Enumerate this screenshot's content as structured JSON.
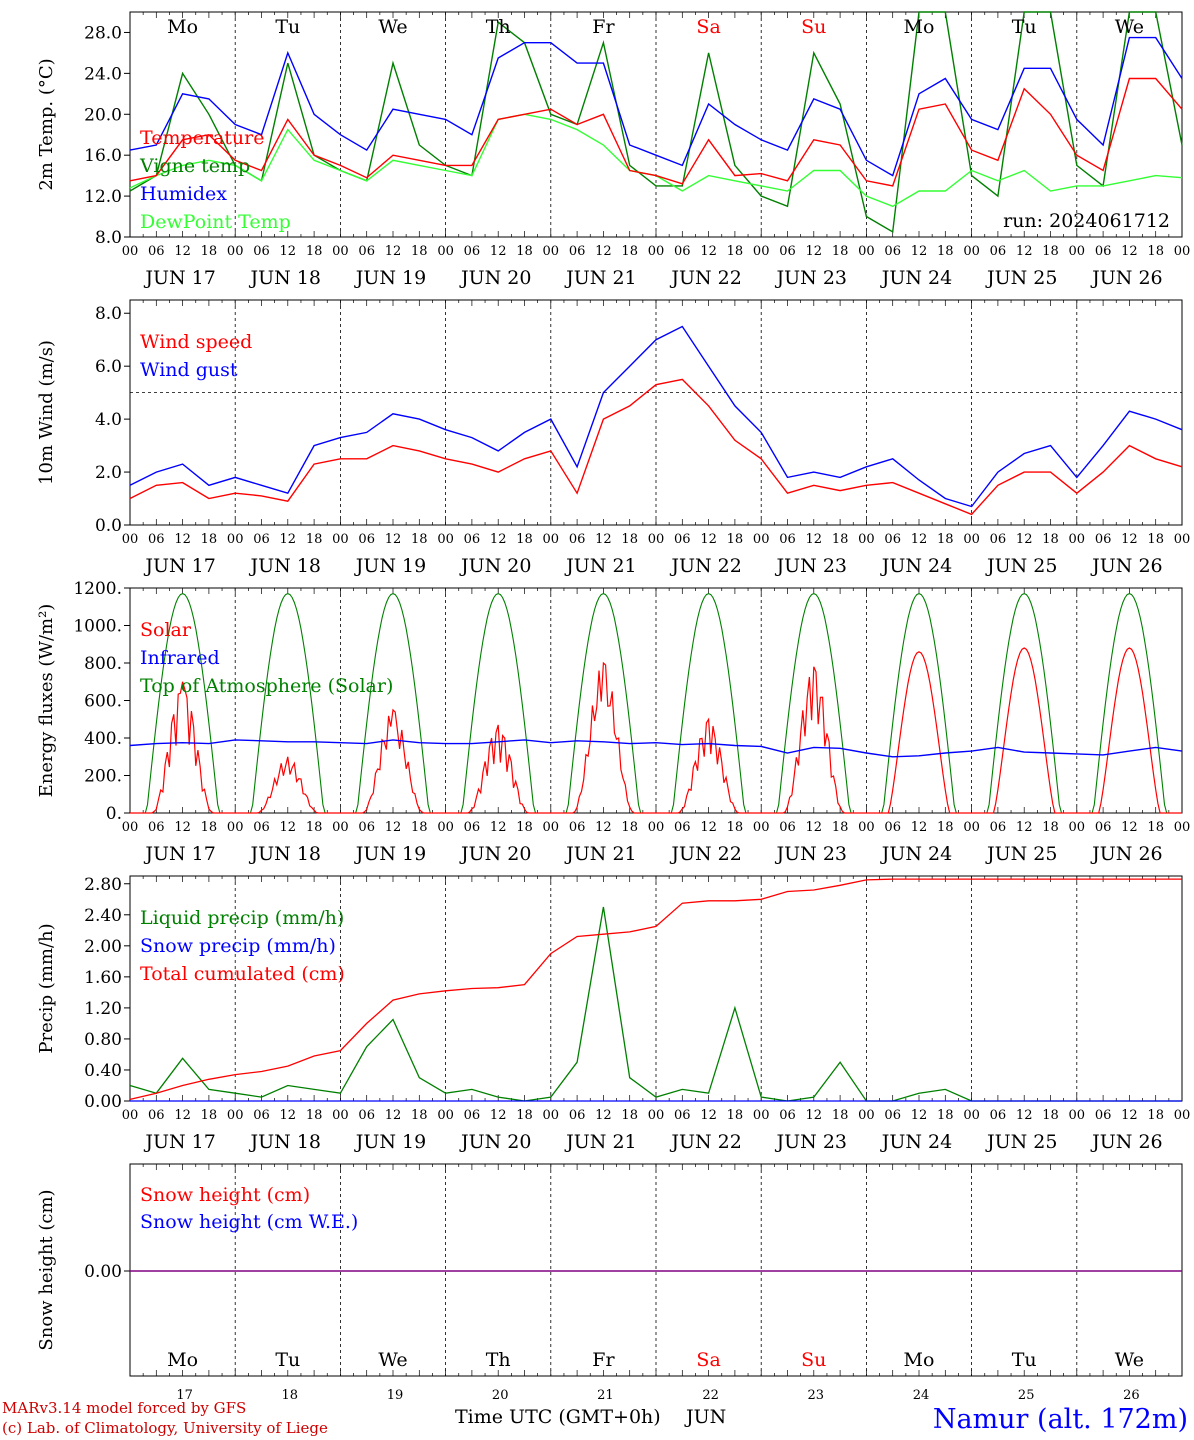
{
  "colors": {
    "red": "#ff0000",
    "green": "#008000",
    "blue": "#0000ff",
    "lightgreen": "#33ff33",
    "purple": "#800080",
    "axis": "#000000",
    "footer_blue": "#0000ff",
    "footer_red": "#cc0000"
  },
  "days": {
    "dates": [
      "JUN 17",
      "JUN 18",
      "JUN 19",
      "JUN 20",
      "JUN 21",
      "JUN 22",
      "JUN 23",
      "JUN 24",
      "JUN 25",
      "JUN 26"
    ],
    "weekdays": [
      "Mo",
      "Tu",
      "We",
      "Th",
      "Fr",
      "Sa",
      "Su",
      "Mo",
      "Tu",
      "We"
    ],
    "weekend": [
      false,
      false,
      false,
      false,
      false,
      true,
      true,
      false,
      false,
      false
    ],
    "day_numbers": [
      "17",
      "18",
      "19",
      "20",
      "21",
      "22",
      "23",
      "24",
      "25",
      "26"
    ],
    "hour_ticks": [
      "00",
      "06",
      "12",
      "18"
    ],
    "end_tick": "00"
  },
  "footer": {
    "model": "MARv3.14 model forced by GFS",
    "lab": "(c) Lab. of Climatology, University of Liege",
    "time_label": "Time UTC (GMT+0h)",
    "month": "JUN",
    "station": "Namur (alt. 172m)"
  },
  "chart_data": [
    {
      "type": "line",
      "ylabel": "2m Temp. (°C)",
      "ylim": [
        8,
        30
      ],
      "yticks": [
        "8.0",
        "12.0",
        "16.0",
        "20.0",
        "24.0",
        "28.0"
      ],
      "ytick_values": [
        8,
        12,
        16,
        20,
        24,
        28
      ],
      "annotation": "run: 2024061712",
      "x_unit": "hours from 2024-06-17 00 UTC",
      "x": [
        0,
        6,
        12,
        18,
        24,
        30,
        36,
        42,
        48,
        54,
        60,
        66,
        72,
        78,
        84,
        90,
        96,
        102,
        108,
        114,
        120,
        126,
        132,
        138,
        144,
        150,
        156,
        162,
        168,
        174,
        180,
        186,
        192,
        198,
        204,
        210,
        216,
        222,
        228,
        234,
        240
      ],
      "series": [
        {
          "name": "Temperature",
          "color": "red",
          "values": [
            13.5,
            14,
            17.5,
            18,
            15.5,
            14.5,
            19.5,
            16,
            15,
            13.8,
            16,
            15.5,
            15,
            15,
            19.5,
            20,
            20.5,
            19,
            20,
            14.5,
            14,
            13.2,
            17.5,
            14,
            14.2,
            13.5,
            17.5,
            17,
            13.5,
            13,
            20.5,
            21,
            16.5,
            15.5,
            22.5,
            20,
            16,
            14.5,
            23.5,
            23.5,
            20.5
          ]
        },
        {
          "name": "Vigne temp",
          "color": "green",
          "values": [
            12.5,
            14,
            24,
            20,
            15,
            13.5,
            25,
            16,
            14.5,
            13.5,
            25,
            17,
            15,
            14,
            29,
            27,
            20,
            19,
            27,
            15,
            13,
            13,
            26,
            15,
            12,
            11,
            26,
            21,
            10,
            8.5,
            30,
            30,
            14,
            12,
            30,
            30,
            15,
            13,
            30,
            30,
            17
          ]
        },
        {
          "name": "Humidex",
          "color": "blue",
          "values": [
            16.5,
            17,
            22,
            21.5,
            19,
            18,
            26,
            20,
            18,
            16.5,
            20.5,
            20,
            19.5,
            18,
            25.5,
            27,
            27,
            25,
            25,
            17,
            16,
            15,
            21,
            19,
            17.5,
            16.5,
            21.5,
            20.5,
            15.5,
            14,
            22,
            23.5,
            19.5,
            18.5,
            24.5,
            24.5,
            19.5,
            17,
            27.5,
            27.5,
            23.5
          ]
        },
        {
          "name": "DewPoint Temp",
          "color": "lightgreen",
          "values": [
            12.8,
            14,
            15,
            15.5,
            15,
            13.5,
            18.5,
            15.5,
            14.5,
            13.5,
            15.5,
            15,
            14.5,
            14,
            19.5,
            20,
            19.5,
            18.5,
            17,
            14.5,
            14,
            12.5,
            14,
            13.5,
            13,
            12.5,
            14.5,
            14.5,
            12,
            11,
            12.5,
            12.5,
            14.5,
            13.5,
            14.5,
            12.5,
            13,
            13,
            13.5,
            14,
            13.8
          ]
        }
      ]
    },
    {
      "type": "line",
      "ylabel": "10m Wind (m/s)",
      "ylim": [
        0,
        8.5
      ],
      "yticks": [
        "0.0",
        "2.0",
        "4.0",
        "6.0",
        "8.0"
      ],
      "ytick_values": [
        0,
        2,
        4,
        6,
        8
      ],
      "reference_line": 5,
      "x_unit": "hours from 2024-06-17 00 UTC",
      "x": [
        0,
        6,
        12,
        18,
        24,
        30,
        36,
        42,
        48,
        54,
        60,
        66,
        72,
        78,
        84,
        90,
        96,
        102,
        108,
        114,
        120,
        126,
        132,
        138,
        144,
        150,
        156,
        162,
        168,
        174,
        180,
        186,
        192,
        198,
        204,
        210,
        216,
        222,
        228,
        234,
        240
      ],
      "series": [
        {
          "name": "Wind speed",
          "color": "red",
          "values": [
            1,
            1.5,
            1.6,
            1,
            1.2,
            1.1,
            0.9,
            2.3,
            2.5,
            2.5,
            3,
            2.8,
            2.5,
            2.3,
            2,
            2.5,
            2.8,
            1.2,
            4,
            4.5,
            5.3,
            5.5,
            4.5,
            3.2,
            2.5,
            1.2,
            1.5,
            1.3,
            1.5,
            1.6,
            1.2,
            0.8,
            0.4,
            1.5,
            2,
            2,
            1.2,
            2,
            3,
            2.5,
            2.2
          ]
        },
        {
          "name": "Wind gust",
          "color": "blue",
          "values": [
            1.5,
            2,
            2.3,
            1.5,
            1.8,
            1.5,
            1.2,
            3,
            3.3,
            3.5,
            4.2,
            4,
            3.6,
            3.3,
            2.8,
            3.5,
            4,
            2.2,
            5,
            6,
            7,
            7.5,
            6,
            4.5,
            3.5,
            1.8,
            2,
            1.8,
            2.2,
            2.5,
            1.7,
            1,
            0.7,
            2,
            2.7,
            3,
            1.8,
            3,
            4.3,
            4,
            3.6
          ]
        }
      ]
    },
    {
      "type": "line",
      "ylabel": "Energy fluxes (W/m²)",
      "ylim": [
        0,
        1200
      ],
      "yticks": [
        "0.",
        "200.",
        "400.",
        "600.",
        "800.",
        "1000.",
        "1200."
      ],
      "ytick_values": [
        0,
        200,
        400,
        600,
        800,
        1000,
        1200
      ],
      "x_unit": "hours from 2024-06-17 00 UTC",
      "solar_peaks": [
        700,
        300,
        550,
        470,
        800,
        500,
        780,
        860,
        880,
        880
      ],
      "infrared": [
        360,
        370,
        375,
        370,
        390,
        385,
        380,
        380,
        375,
        370,
        390,
        375,
        370,
        370,
        380,
        390,
        375,
        385,
        380,
        370,
        375,
        365,
        370,
        360,
        355,
        320,
        350,
        345,
        320,
        300,
        305,
        320,
        330,
        350,
        325,
        320,
        315,
        310,
        330,
        350,
        330
      ],
      "top_of_atmosphere_peak": 1170,
      "series": [
        {
          "name": "Solar",
          "color": "red"
        },
        {
          "name": "Infrared",
          "color": "blue"
        },
        {
          "name": "Top of Atmosphere (Solar)",
          "color": "green"
        }
      ]
    },
    {
      "type": "line",
      "ylabel": "Precip (mm/h)",
      "ylim": [
        0,
        2.9
      ],
      "yticks": [
        "0.00",
        "0.40",
        "0.80",
        "1.20",
        "1.60",
        "2.00",
        "2.40",
        "2.80"
      ],
      "ytick_values": [
        0,
        0.4,
        0.8,
        1.2,
        1.6,
        2.0,
        2.4,
        2.8
      ],
      "x_unit": "hours from 2024-06-17 00 UTC",
      "x": [
        0,
        6,
        12,
        18,
        24,
        30,
        36,
        42,
        48,
        54,
        60,
        66,
        72,
        78,
        84,
        90,
        96,
        102,
        108,
        114,
        120,
        126,
        132,
        138,
        144,
        150,
        156,
        162,
        168,
        174,
        180,
        186,
        192,
        198,
        204,
        210,
        216,
        222,
        228,
        234,
        240
      ],
      "series": [
        {
          "name": "Liquid precip (mm/h)",
          "color": "green",
          "values": [
            0.2,
            0.1,
            0.55,
            0.15,
            0.1,
            0.05,
            0.2,
            0.15,
            0.1,
            0.7,
            1.05,
            0.3,
            0.1,
            0.15,
            0.05,
            0,
            0.05,
            0.5,
            2.5,
            0.3,
            0.05,
            0.15,
            0.1,
            1.2,
            0.05,
            0,
            0.05,
            0.5,
            0,
            0,
            0.1,
            0.15,
            0,
            0,
            0,
            0,
            0,
            0,
            0,
            0,
            0
          ]
        },
        {
          "name": "Snow precip (mm/h)",
          "color": "blue",
          "values": [
            0,
            0,
            0,
            0,
            0,
            0,
            0,
            0,
            0,
            0,
            0,
            0,
            0,
            0,
            0,
            0,
            0,
            0,
            0,
            0,
            0,
            0,
            0,
            0,
            0,
            0,
            0,
            0,
            0,
            0,
            0,
            0,
            0,
            0,
            0,
            0,
            0,
            0,
            0,
            0,
            0
          ]
        },
        {
          "name": "Total cumulated (cm)",
          "color": "red",
          "values": [
            0.02,
            0.1,
            0.2,
            0.28,
            0.34,
            0.38,
            0.45,
            0.58,
            0.65,
            1.0,
            1.3,
            1.38,
            1.42,
            1.45,
            1.46,
            1.5,
            1.9,
            2.12,
            2.15,
            2.18,
            2.25,
            2.55,
            2.58,
            2.58,
            2.6,
            2.7,
            2.72,
            2.78,
            2.85,
            2.86,
            2.86,
            2.86,
            2.86,
            2.86,
            2.86,
            2.86,
            2.86,
            2.86,
            2.86,
            2.86,
            2.86
          ]
        }
      ]
    },
    {
      "type": "line",
      "ylabel": "Snow height (cm)",
      "yticks": [
        "0.00"
      ],
      "ytick_values": [
        0
      ],
      "series": [
        {
          "name": "Snow height (cm)",
          "color": "red",
          "values": [
            0,
            0
          ]
        },
        {
          "name": "Snow height (cm W.E.)",
          "color": "blue",
          "values": [
            0,
            0
          ]
        }
      ]
    }
  ]
}
